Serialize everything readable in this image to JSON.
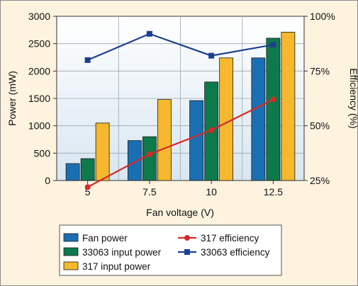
{
  "chart_data": {
    "type": "bar",
    "categories": [
      "5",
      "7.5",
      "10",
      "12.5"
    ],
    "xlabel": "Fan voltage (V)",
    "ylabel_left": "Power (mW)",
    "ylabel_right": "Efficiency (%)",
    "ylim_left": [
      0,
      3000
    ],
    "yticks_left": [
      "0",
      "500",
      "1000",
      "1500",
      "2000",
      "2500",
      "3000"
    ],
    "ylim_right": [
      25,
      100
    ],
    "yticks_right": [
      "25%",
      "50%",
      "75%",
      "100%"
    ],
    "grid": true,
    "legend_position": "bottom",
    "bar_series": [
      {
        "name": "Fan power",
        "color": "#1a6fb3",
        "values": [
          310,
          730,
          1460,
          2240
        ]
      },
      {
        "name": "33063 input power",
        "color": "#0c7a4a",
        "values": [
          400,
          800,
          1800,
          2600
        ]
      },
      {
        "name": "317 input power",
        "color": "#f5b82e",
        "values": [
          1050,
          1480,
          2240,
          2710
        ]
      }
    ],
    "line_series": [
      {
        "name": "317 efficiency",
        "color": "#d42a2a",
        "axis": "right",
        "values": [
          22,
          37,
          48,
          62
        ]
      },
      {
        "name": "33063 efficiency",
        "color": "#1c3f8f",
        "axis": "right",
        "values": [
          80,
          92,
          82,
          87
        ]
      }
    ]
  },
  "legend": {
    "items": [
      {
        "label": "Fan power",
        "kind": "bar",
        "color": "#1a6fb3"
      },
      {
        "label": "317 efficiency",
        "kind": "line",
        "color": "#d42a2a"
      },
      {
        "label": "33063 input power",
        "kind": "bar",
        "color": "#0c7a4a"
      },
      {
        "label": "33063 efficiency",
        "kind": "line",
        "color": "#1c3f8f"
      },
      {
        "label": "317 input power",
        "kind": "bar",
        "color": "#f5b82e"
      }
    ]
  }
}
